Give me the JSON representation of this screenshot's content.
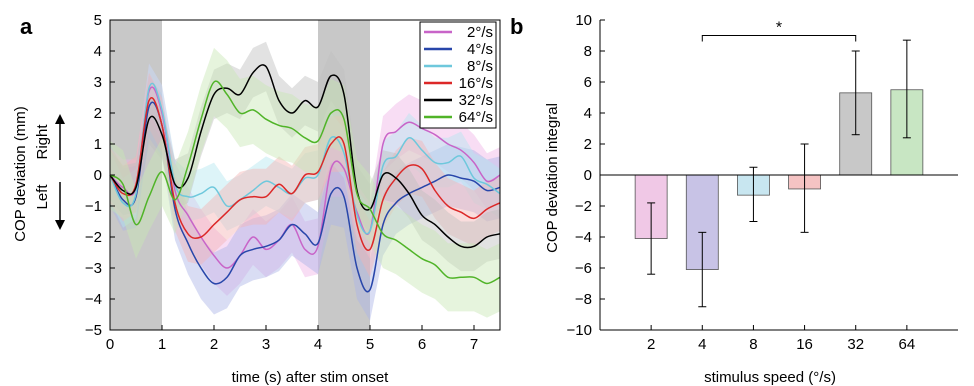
{
  "figure": {
    "panel_a_label": "a",
    "panel_b_label": "b"
  },
  "chart_data": [
    {
      "type": "line",
      "panel": "a",
      "xlabel": "time (s) after stim onset",
      "ylabel": "COP deviation (mm)",
      "direction_labels": {
        "left": "Left",
        "right": "Right"
      },
      "xlim": [
        0,
        7.5
      ],
      "ylim": [
        -5,
        5
      ],
      "xticks": [
        0,
        1,
        2,
        3,
        4,
        5,
        6,
        7
      ],
      "yticks": [
        -5,
        -4,
        -3,
        -2,
        -1,
        0,
        1,
        2,
        3,
        4,
        5
      ],
      "shaded_intervals": [
        [
          0,
          1
        ],
        [
          4,
          5
        ]
      ],
      "shade_color": "#c8c8c8",
      "legend_position": "top-right",
      "x": [
        0,
        0.25,
        0.5,
        0.75,
        1.0,
        1.25,
        1.5,
        1.75,
        2.0,
        2.25,
        2.5,
        2.75,
        3.0,
        3.25,
        3.5,
        3.75,
        4.0,
        4.25,
        4.5,
        4.75,
        5.0,
        5.25,
        5.5,
        5.75,
        6.0,
        6.25,
        6.5,
        6.75,
        7.0,
        7.25,
        7.5
      ],
      "series": [
        {
          "name": "2°/s",
          "color": "#c864c8",
          "band_color": "#f0b4e6",
          "band": 0.9,
          "values": [
            0.0,
            -0.4,
            -0.4,
            2.7,
            2.0,
            -0.5,
            -1.3,
            -2.0,
            -2.6,
            -3.0,
            -2.6,
            -2.0,
            -2.4,
            -2.1,
            -1.6,
            -2.4,
            -2.3,
            0.2,
            0.2,
            -1.2,
            -1.8,
            1.0,
            1.4,
            1.7,
            1.5,
            1.3,
            1.0,
            0.8,
            0.4,
            -0.2,
            0.0
          ]
        },
        {
          "name": "4°/s",
          "color": "#2846aa",
          "band_color": "#aab4e6",
          "band": 1.0,
          "values": [
            0.0,
            -0.8,
            -0.7,
            2.2,
            1.6,
            -1.1,
            -2.2,
            -3.0,
            -3.5,
            -3.3,
            -2.6,
            -2.4,
            -2.3,
            -2.1,
            -1.6,
            -1.9,
            -2.2,
            -0.6,
            -0.7,
            -3.0,
            -3.7,
            -1.6,
            -0.9,
            -0.6,
            -0.4,
            -0.2,
            0.0,
            -0.1,
            -0.2,
            -0.5,
            -0.4
          ]
        },
        {
          "name": "8°/s",
          "color": "#6ec8dc",
          "band_color": "#b4e6f0",
          "band": 0.8,
          "values": [
            0.0,
            -0.9,
            -0.6,
            2.8,
            2.1,
            -0.3,
            -0.7,
            -0.6,
            -0.4,
            -1.0,
            -0.8,
            -0.5,
            -0.2,
            -0.4,
            -0.6,
            -0.1,
            0.0,
            1.2,
            0.7,
            -1.3,
            -1.8,
            0.3,
            0.6,
            1.2,
            0.8,
            0.4,
            0.4,
            0.6,
            -0.1,
            -0.3,
            -0.6
          ]
        },
        {
          "name": "16°/s",
          "color": "#dc2828",
          "band_color": "#f5b4b4",
          "band": 0.9,
          "values": [
            0.0,
            -0.6,
            -0.3,
            2.4,
            1.6,
            -0.9,
            -1.9,
            -2.0,
            -1.6,
            -1.2,
            -0.8,
            -0.7,
            -0.7,
            -0.3,
            -0.6,
            0.0,
            0.1,
            1.0,
            1.0,
            -1.6,
            -2.4,
            -0.8,
            -0.1,
            0.3,
            0.2,
            -0.5,
            -1.0,
            -1.2,
            -1.4,
            -1.1,
            -0.9
          ]
        },
        {
          "name": "32°/s",
          "color": "#000000",
          "band_color": "#bebebe",
          "band": 0.8,
          "values": [
            0.0,
            -0.5,
            -0.4,
            1.8,
            1.3,
            -0.3,
            -0.1,
            1.4,
            2.6,
            2.8,
            2.6,
            3.3,
            3.5,
            2.4,
            2.0,
            2.4,
            2.2,
            3.2,
            2.6,
            -0.5,
            -1.1,
            0.0,
            -0.1,
            -0.6,
            -1.3,
            -1.6,
            -2.0,
            -2.3,
            -2.3,
            -2.0,
            -1.9
          ]
        },
        {
          "name": "64°/s",
          "color": "#50b428",
          "band_color": "#c8e6b4",
          "band": 1.1,
          "values": [
            0.0,
            -0.3,
            -1.6,
            -0.7,
            0.1,
            -0.8,
            0.3,
            1.8,
            3.0,
            2.6,
            2.0,
            2.1,
            1.8,
            1.6,
            1.5,
            1.2,
            1.1,
            2.0,
            1.8,
            -0.6,
            -1.1,
            -1.9,
            -2.1,
            -2.4,
            -2.7,
            -2.9,
            -3.3,
            -3.3,
            -3.3,
            -3.5,
            -3.3
          ]
        }
      ]
    },
    {
      "type": "bar",
      "panel": "b",
      "xlabel": "stimulus speed (°/s)",
      "ylabel": "COP deviation integral",
      "ylim": [
        -10,
        10
      ],
      "yticks": [
        -10,
        -8,
        -6,
        -4,
        -2,
        0,
        2,
        4,
        6,
        8,
        10
      ],
      "categories": [
        "2",
        "4",
        "8",
        "16",
        "32",
        "64"
      ],
      "values": [
        -4.1,
        -6.1,
        -1.3,
        -0.9,
        5.3,
        5.5
      ],
      "error_low": [
        -6.4,
        -8.5,
        -3.0,
        -3.7,
        2.6,
        2.4
      ],
      "error_high": [
        -1.8,
        -3.7,
        0.5,
        2.0,
        8.0,
        8.7
      ],
      "colors": [
        "#f0c8e6",
        "#c8c3e6",
        "#c8e6f0",
        "#f5c3c3",
        "#c8c8c8",
        "#c8e6c3"
      ],
      "significance": {
        "from": "4",
        "to": "32",
        "y": 9.0,
        "label": "*"
      }
    }
  ]
}
